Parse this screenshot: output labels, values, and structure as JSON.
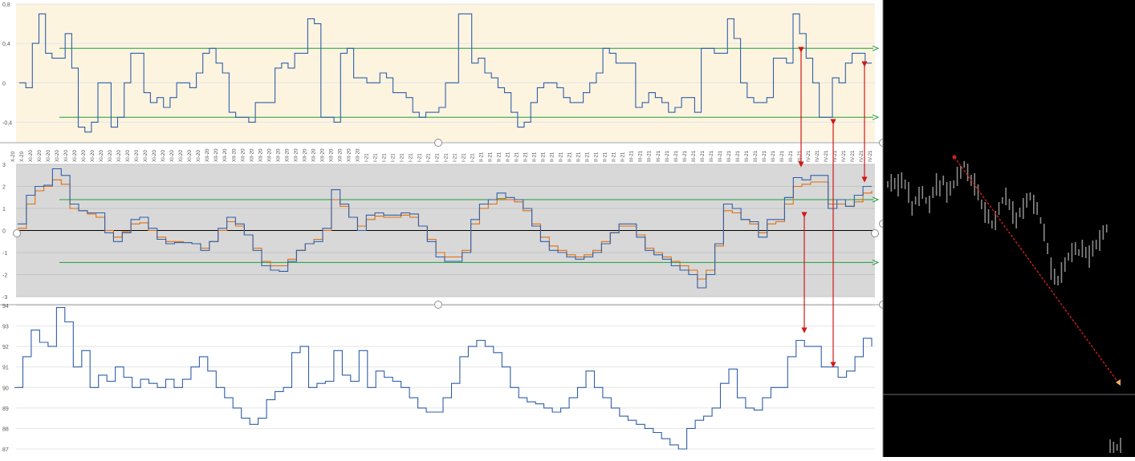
{
  "colors": {
    "top_bg": "#fdf4e0",
    "mid_bg": "#d8d8d8",
    "main_line": "#2f5fa8",
    "signal_line": "#e36c0a",
    "threshold": "#1c9e3c",
    "arrow": "#d01818",
    "terminal_bg": "#000000",
    "terminal_price": "#8a8a8a"
  },
  "chart_data": [
    {
      "type": "line",
      "title": "",
      "ylim": [
        -0.6,
        0.8
      ],
      "y_ticks": [
        "0,8",
        "0,4",
        "0",
        "-0,4"
      ],
      "y_tick_values": [
        0.8,
        0.4,
        0,
        -0.4
      ],
      "thresholds": [
        0.35,
        -0.35
      ],
      "grid": true,
      "series": [
        {
          "values": [
            0.0,
            -0.05,
            0.4,
            0.7,
            0.3,
            0.25,
            0.25,
            0.5,
            0.15,
            -0.45,
            -0.5,
            -0.4,
            0.0,
            0.0,
            -0.45,
            -0.35,
            0.0,
            0.3,
            0.3,
            -0.1,
            -0.2,
            -0.15,
            -0.25,
            -0.15,
            0.0,
            0.0,
            -0.05,
            0.1,
            0.3,
            0.35,
            0.2,
            0.1,
            -0.3,
            -0.35,
            -0.35,
            -0.4,
            -0.2,
            -0.2,
            -0.2,
            0.15,
            0.2,
            0.15,
            0.3,
            0.3,
            0.65,
            0.6,
            -0.35,
            -0.35,
            -0.4,
            0.3,
            0.35,
            0.05,
            0.05,
            0.0,
            0.0,
            0.1,
            0.05,
            -0.1,
            -0.1,
            -0.15,
            -0.3,
            -0.35,
            -0.3,
            -0.3,
            -0.25,
            0.0,
            0.0,
            0.7,
            0.7,
            0.2,
            0.25,
            0.1,
            0.05,
            -0.05,
            -0.1,
            -0.3,
            -0.45,
            -0.4,
            -0.2,
            -0.05,
            0.0,
            0.0,
            -0.05,
            -0.15,
            -0.2,
            -0.2,
            -0.1,
            0.0,
            0.1,
            0.35,
            0.3,
            0.2,
            0.2,
            0.2,
            -0.25,
            -0.2,
            -0.1,
            -0.15,
            -0.2,
            -0.3,
            -0.25,
            -0.15,
            -0.15,
            -0.3,
            0.35,
            0.35,
            0.3,
            0.3,
            0.65,
            0.45,
            0.0,
            -0.15,
            -0.2,
            -0.2,
            -0.15,
            0.25,
            0.25,
            0.2,
            0.7,
            0.5,
            0.25,
            0.0,
            -0.35,
            -0.35,
            0.05,
            0.0,
            0.2,
            0.3,
            0.3,
            0.2,
            0.2
          ],
          "x_index_range": [
            0,
            130
          ]
        }
      ]
    },
    {
      "type": "line",
      "title": "",
      "ylim": [
        -3,
        3
      ],
      "y_ticks": [
        "3",
        "2",
        "1",
        "0",
        "-1",
        "-2",
        "-3"
      ],
      "y_tick_values": [
        3,
        2,
        1,
        0,
        -1,
        -2,
        -3
      ],
      "thresholds": [
        1.4,
        -1.45
      ],
      "zero_line": 0,
      "grid": true,
      "x_tick_labels": [
        "X-20",
        "X-20",
        "XI-20",
        "XI-20",
        "XI-20",
        "XI-20",
        "XI-20",
        "XI-20",
        "XI-20",
        "XI-20",
        "XI-20",
        "XI-20",
        "XI-20",
        "XI-20",
        "XI-20",
        "XI-20",
        "XI-20",
        "XI-20",
        "XI-20",
        "XI-20",
        "XI-20",
        "XI-20",
        "XII-20",
        "XII-20",
        "XII-20",
        "XII-20",
        "XII-20",
        "XII-20",
        "XII-20",
        "XII-20",
        "XII-20",
        "XII-20",
        "XII-20",
        "XII-20",
        "XII-20",
        "XII-20",
        "XII-20",
        "XII-20",
        "XII-20",
        "XII-20",
        "I-21",
        "I-21",
        "I-21",
        "I-21",
        "I-21",
        "I-21",
        "I-21",
        "I-21",
        "I-21",
        "I-21",
        "I-21",
        "I-21",
        "I-21",
        "II-21",
        "II-21",
        "II-21",
        "II-21",
        "II-21",
        "II-21",
        "II-21",
        "II-21",
        "II-21",
        "II-21",
        "II-21",
        "II-21",
        "II-21",
        "II-21",
        "II-21",
        "II-21",
        "II-21",
        "III-21",
        "III-21",
        "III-21",
        "III-21",
        "III-21",
        "III-21",
        "III-21",
        "III-21",
        "III-21",
        "III-21",
        "III-21",
        "III-21",
        "III-21",
        "III-21",
        "III-21",
        "III-21",
        "III-21",
        "III-21",
        "III-21",
        "III-21",
        "IV-21",
        "IV-21",
        "IV-21",
        "IV-21",
        "IV-21",
        "IV-21",
        "IV-21",
        "IV-21"
      ],
      "series": [
        {
          "color_key": "main_line",
          "values": [
            0.3,
            1.6,
            2.0,
            2.05,
            2.8,
            2.5,
            1.2,
            0.9,
            0.8,
            0.8,
            -0.1,
            -0.5,
            -0.1,
            0.5,
            0.6,
            0.1,
            -0.4,
            -0.6,
            -0.55,
            -0.55,
            -0.6,
            -0.9,
            -0.5,
            0.1,
            0.6,
            0.3,
            -0.2,
            -0.9,
            -1.6,
            -1.8,
            -1.85,
            -1.4,
            -0.9,
            -0.6,
            -0.5,
            0.1,
            1.85,
            1.2,
            0.6,
            0.0,
            0.7,
            0.8,
            0.7,
            0.7,
            0.8,
            0.75,
            0.2,
            -0.5,
            -1.2,
            -1.4,
            -1.4,
            -1.0,
            0.5,
            1.2,
            1.4,
            1.7,
            1.5,
            1.4,
            1.0,
            0.2,
            -0.5,
            -0.9,
            -1.0,
            -1.2,
            -1.3,
            -1.2,
            -1.0,
            -0.6,
            -0.1,
            0.3,
            0.3,
            -0.3,
            -0.9,
            -1.1,
            -1.3,
            -1.6,
            -1.8,
            -2.0,
            -2.6,
            -2.0,
            -0.6,
            1.2,
            1.0,
            0.5,
            0.4,
            -0.3,
            0.5,
            0.5,
            1.5,
            2.4,
            2.3,
            2.5,
            2.5,
            1.0,
            1.4,
            1.1,
            1.6,
            2.0,
            2.0
          ],
          "x_index_range": [
            0,
            100
          ]
        },
        {
          "color_key": "signal_line",
          "values": [
            0.1,
            1.2,
            1.8,
            2.0,
            2.3,
            2.1,
            1.0,
            0.9,
            0.75,
            0.6,
            0.0,
            -0.3,
            -0.05,
            0.3,
            0.35,
            0.0,
            -0.3,
            -0.5,
            -0.5,
            -0.55,
            -0.6,
            -0.8,
            -0.5,
            0.0,
            0.4,
            0.2,
            -0.2,
            -0.8,
            -1.4,
            -1.6,
            -1.6,
            -1.3,
            -0.9,
            -0.6,
            -0.4,
            0.0,
            1.4,
            1.1,
            0.6,
            0.2,
            0.5,
            0.65,
            0.6,
            0.6,
            0.7,
            0.6,
            0.2,
            -0.4,
            -1.0,
            -1.2,
            -1.2,
            -0.9,
            0.3,
            1.0,
            1.2,
            1.45,
            1.4,
            1.3,
            0.9,
            0.3,
            -0.3,
            -0.7,
            -0.9,
            -1.1,
            -1.2,
            -1.1,
            -0.9,
            -0.5,
            -0.1,
            0.2,
            0.2,
            -0.2,
            -0.8,
            -1.0,
            -1.2,
            -1.4,
            -1.6,
            -1.8,
            -2.2,
            -1.8,
            -0.7,
            0.9,
            0.8,
            0.5,
            0.3,
            -0.1,
            0.3,
            0.4,
            1.2,
            2.0,
            2.1,
            2.2,
            2.2,
            1.2,
            1.2,
            1.1,
            1.3,
            1.7,
            1.8
          ],
          "x_index_range": [
            0,
            100
          ]
        }
      ]
    },
    {
      "type": "line",
      "title": "",
      "ylim": [
        87,
        94
      ],
      "y_ticks": [
        "94",
        "93",
        "92",
        "91",
        "90",
        "89",
        "88",
        "87"
      ],
      "y_tick_values": [
        94,
        93,
        92,
        91,
        90,
        89,
        88,
        87
      ],
      "grid": true,
      "series": [
        {
          "values": [
            90.0,
            91.5,
            92.8,
            92.2,
            92.0,
            93.9,
            93.2,
            91.0,
            91.8,
            90.0,
            90.6,
            90.3,
            91.0,
            90.5,
            90.0,
            90.4,
            90.2,
            90.0,
            90.4,
            90.0,
            90.4,
            91.0,
            91.5,
            90.8,
            90.0,
            89.5,
            89.0,
            88.5,
            88.2,
            88.5,
            89.4,
            89.8,
            90.0,
            91.7,
            92.0,
            90.0,
            90.2,
            90.3,
            91.8,
            90.6,
            90.3,
            91.8,
            90.0,
            90.8,
            90.5,
            90.3,
            90.0,
            89.5,
            89.0,
            88.8,
            88.8,
            89.5,
            90.2,
            91.5,
            92.0,
            92.3,
            92.0,
            91.7,
            91.0,
            90.0,
            89.5,
            89.3,
            89.2,
            89.0,
            88.8,
            89.0,
            89.5,
            90.0,
            90.8,
            90.0,
            89.5,
            89.0,
            88.6,
            88.4,
            88.2,
            88.0,
            87.8,
            87.5,
            87.2,
            87.0,
            88.0,
            88.4,
            88.6,
            89.0,
            90.2,
            90.9,
            89.5,
            89.0,
            88.9,
            89.5,
            90.0,
            90.0,
            91.5,
            92.3,
            92.0,
            92.0,
            91.0,
            91.0,
            90.5,
            90.8,
            91.5,
            92.4,
            92.0
          ],
          "x_index_range": [
            0,
            102
          ]
        }
      ]
    }
  ],
  "annotations": {
    "arrows": [
      {
        "from_chart": 1,
        "to_chart": 2,
        "count": 3
      },
      {
        "from_chart": 2,
        "to_chart": 3,
        "count": 2
      }
    ]
  },
  "terminal": {
    "price_series": [
      1.4,
      1.42,
      1.41,
      1.39,
      1.45,
      1.4,
      1.3,
      1.1,
      1.2,
      1.25,
      1.3,
      1.2,
      1.15,
      1.3,
      1.4,
      1.35,
      1.45,
      1.3,
      1.35,
      1.4,
      1.5,
      1.55,
      1.65,
      1.55,
      1.45,
      1.4,
      1.3,
      1.15,
      1.05,
      1.0,
      0.9,
      0.95,
      1.1,
      1.2,
      1.25,
      1.15,
      1.05,
      0.95,
      1.05,
      1.1,
      1.2,
      1.25,
      1.15,
      1.1,
      0.95,
      0.8,
      0.6,
      0.35,
      0.25,
      0.2,
      0.3,
      0.4,
      0.5,
      0.55,
      0.6,
      0.55,
      0.6,
      0.55,
      0.5,
      0.6,
      0.65,
      0.7,
      0.8,
      0.85,
      -2.5,
      -2.9,
      -3.1,
      -3.4
    ]
  }
}
